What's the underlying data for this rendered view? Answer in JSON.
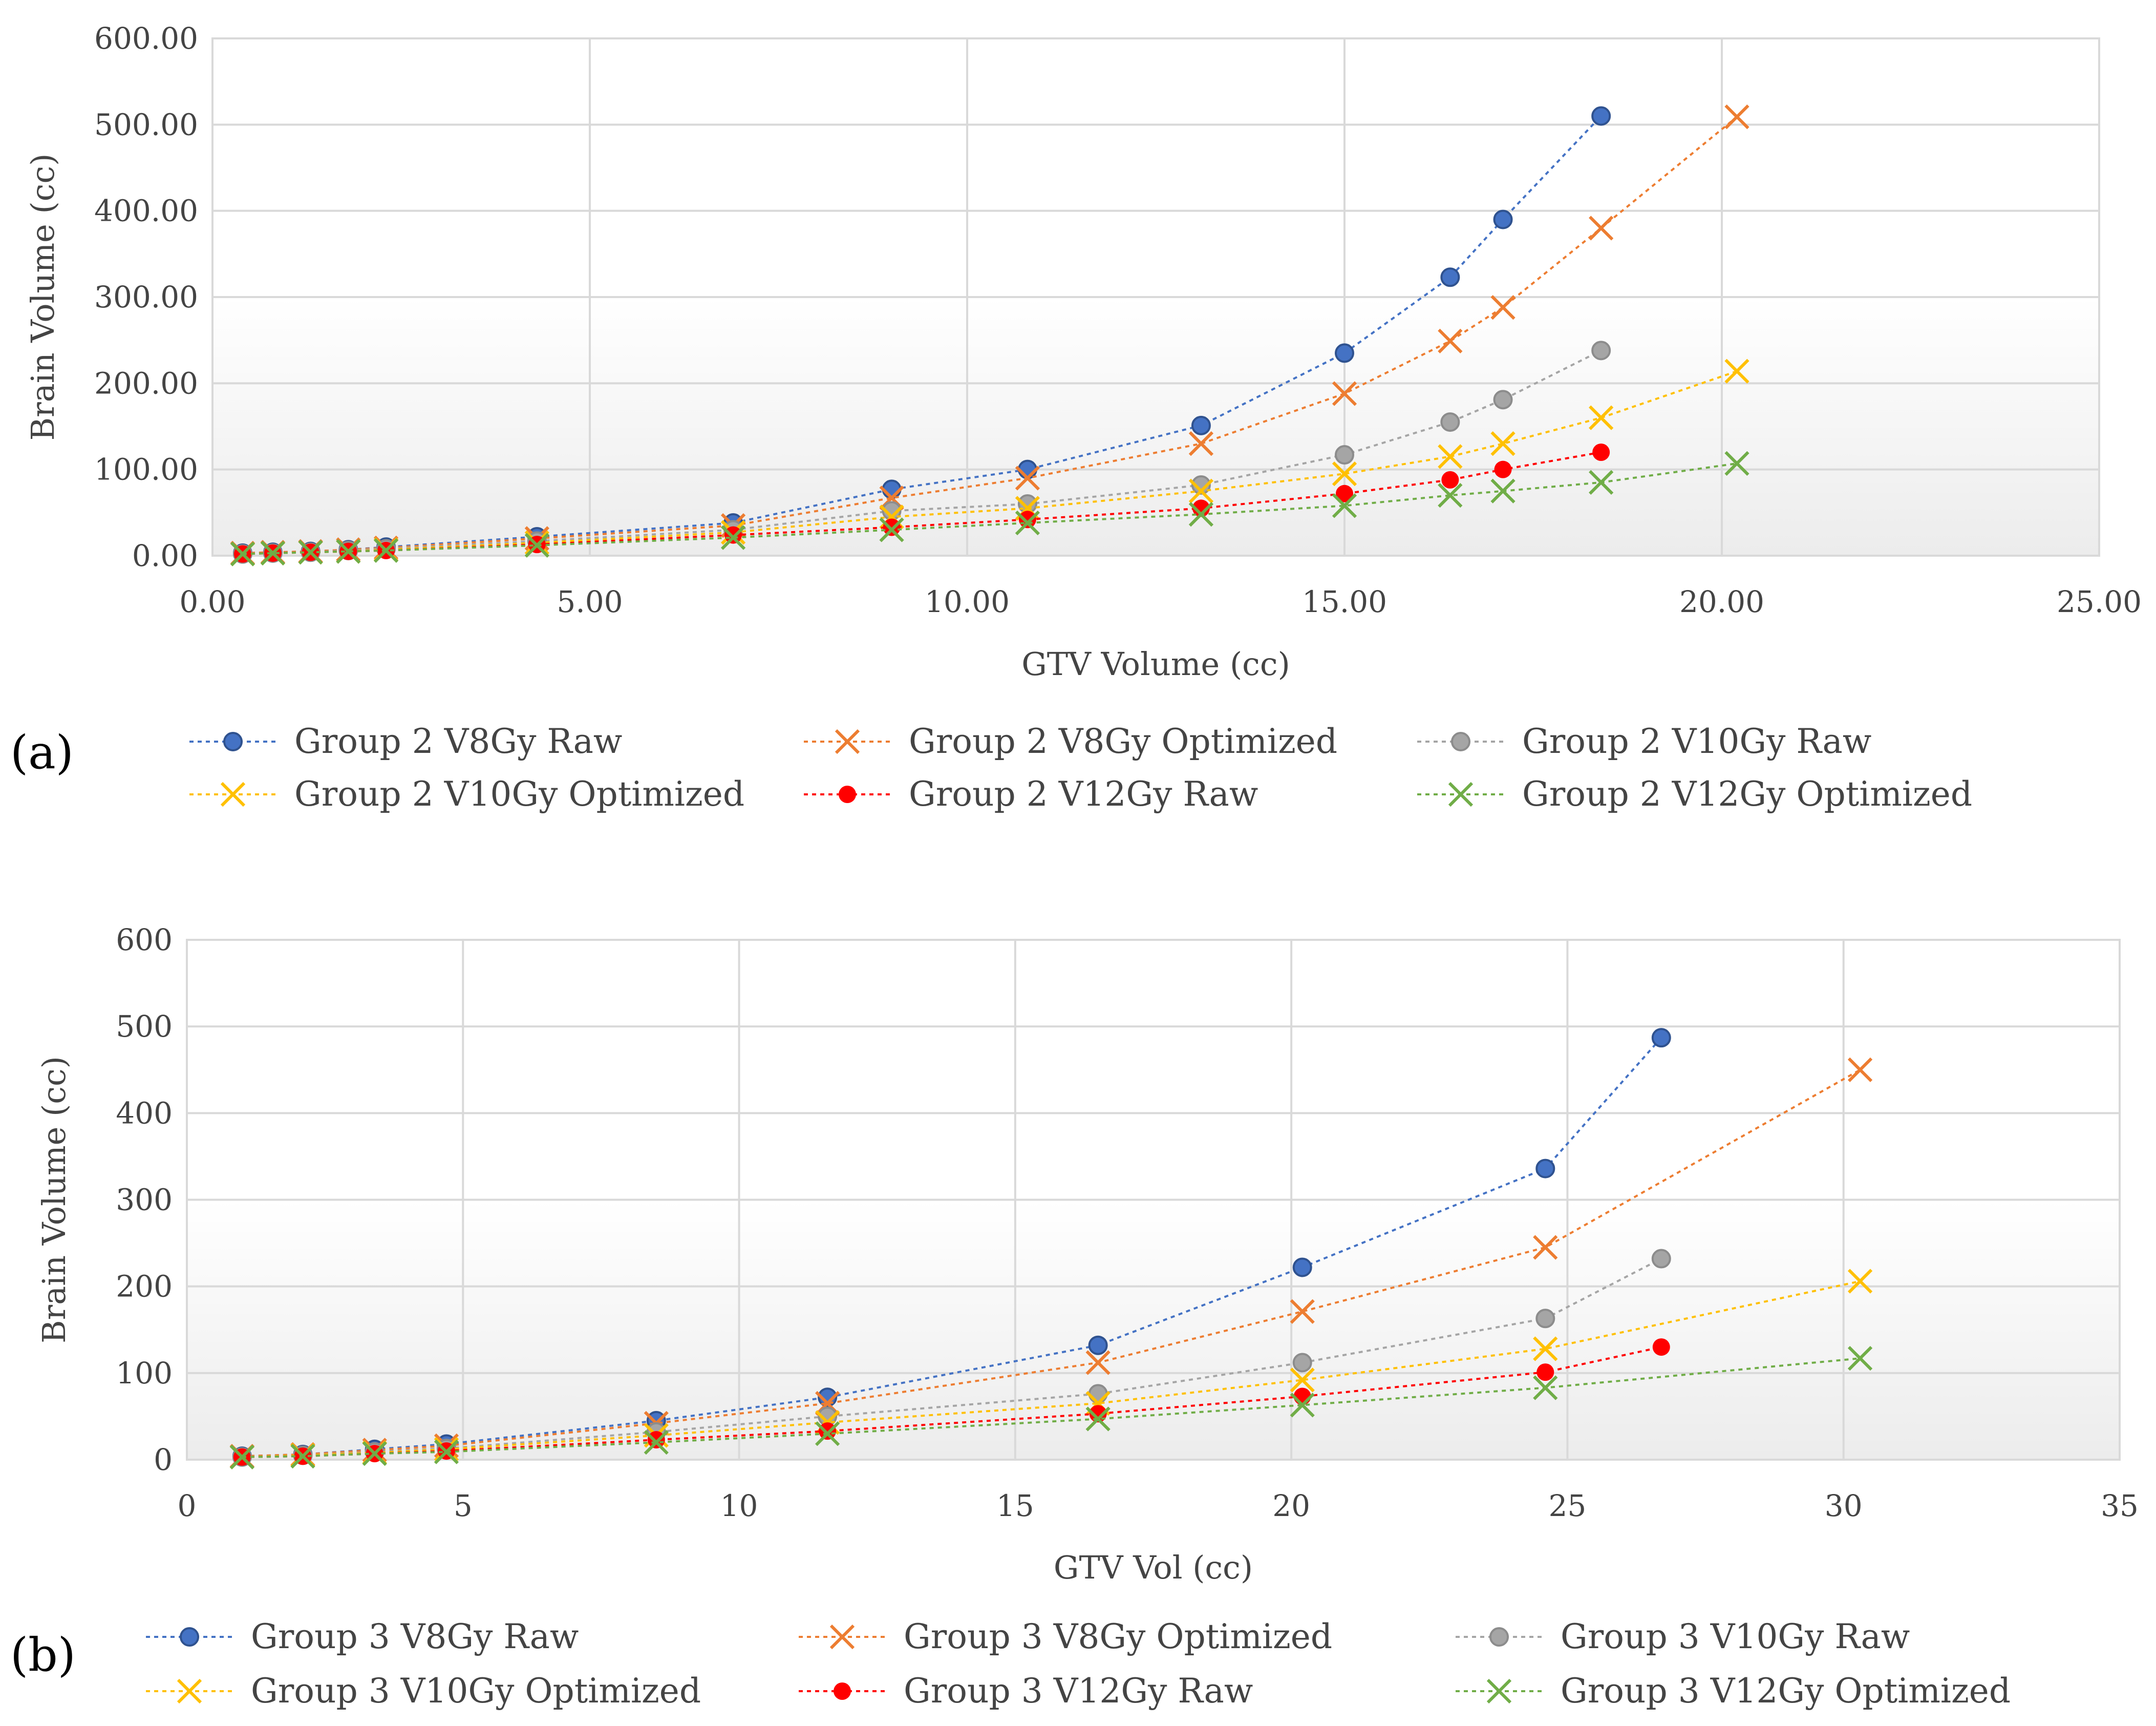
{
  "chart_data": [
    {
      "type": "scatter",
      "panel_label": "(a)",
      "title": "",
      "xlabel": "GTV Volume (cc)",
      "ylabel": "Brain Volume (cc)",
      "xlim": [
        0,
        25
      ],
      "ylim": [
        0,
        600
      ],
      "xticks": [
        "0.00",
        "5.00",
        "10.00",
        "15.00",
        "20.00",
        "25.00"
      ],
      "yticks": [
        "0.00",
        "100.00",
        "200.00",
        "300.00",
        "400.00",
        "500.00",
        "600.00"
      ],
      "grid": true,
      "legend_position": "bottom",
      "series": [
        {
          "name": "Group 2 V8Gy  Raw",
          "marker": "circle",
          "color": "#4472C4",
          "x": [
            0.4,
            0.8,
            1.3,
            1.8,
            2.3,
            4.3,
            6.9,
            9.0,
            10.8,
            13.1,
            15.0,
            16.4,
            17.1,
            18.4
          ],
          "y": [
            3,
            4,
            5,
            7,
            10,
            22,
            38,
            77,
            100,
            151,
            235,
            323,
            390,
            510
          ]
        },
        {
          "name": "Group 2 V8Gy Optimized",
          "marker": "x",
          "color": "#ED7D31",
          "x": [
            0.4,
            0.8,
            1.3,
            1.8,
            2.3,
            4.3,
            6.9,
            9.0,
            10.8,
            13.1,
            15.0,
            16.4,
            17.1,
            18.4,
            20.2
          ],
          "y": [
            3,
            4,
            5,
            7,
            9,
            20,
            35,
            67,
            90,
            130,
            188,
            249,
            288,
            380,
            509
          ]
        },
        {
          "name": "Group 2 V10Gy Raw",
          "marker": "circle",
          "color": "#A5A5A5",
          "x": [
            0.4,
            0.8,
            1.3,
            1.8,
            2.3,
            4.3,
            6.9,
            9.0,
            10.8,
            13.1,
            15.0,
            16.4,
            17.1,
            18.4
          ],
          "y": [
            2,
            3,
            4,
            6,
            8,
            17,
            30,
            52,
            60,
            82,
            117,
            155,
            181,
            238
          ]
        },
        {
          "name": "Group 2 V10Gy Optimized",
          "marker": "x",
          "color": "#FFC000",
          "x": [
            0.4,
            0.8,
            1.3,
            1.8,
            2.3,
            4.3,
            6.9,
            9.0,
            10.8,
            13.1,
            15.0,
            16.4,
            17.1,
            18.4,
            20.2
          ],
          "y": [
            2,
            3,
            4,
            5,
            7,
            15,
            27,
            45,
            55,
            75,
            95,
            115,
            130,
            160,
            214
          ]
        },
        {
          "name": "Group 2 V12Gy Raw",
          "marker": "dot",
          "color": "#FF0000",
          "x": [
            0.4,
            0.8,
            1.3,
            1.8,
            2.3,
            4.3,
            6.9,
            9.0,
            10.8,
            13.1,
            15.0,
            16.4,
            17.1,
            18.4
          ],
          "y": [
            2,
            3,
            4,
            5,
            6,
            13,
            24,
            33,
            42,
            55,
            72,
            88,
            100,
            120
          ]
        },
        {
          "name": "Group 2 V12Gy Optimized",
          "marker": "x",
          "color": "#70AD47",
          "x": [
            0.4,
            0.8,
            1.3,
            1.8,
            2.3,
            4.3,
            6.9,
            9.0,
            10.8,
            13.1,
            15.0,
            16.4,
            17.1,
            18.4,
            20.2
          ],
          "y": [
            2,
            3,
            4,
            5,
            6,
            12,
            21,
            30,
            38,
            48,
            58,
            70,
            75,
            85,
            107
          ]
        }
      ]
    },
    {
      "type": "scatter",
      "panel_label": "(b)",
      "title": "",
      "xlabel": "GTV Vol (cc)",
      "ylabel": "Brain Volume (cc)",
      "xlim": [
        0,
        35
      ],
      "ylim": [
        0,
        600
      ],
      "xticks": [
        "0",
        "5",
        "10",
        "15",
        "20",
        "25",
        "30",
        "35"
      ],
      "yticks": [
        "0",
        "100",
        "200",
        "300",
        "400",
        "500",
        "600"
      ],
      "grid": true,
      "legend_position": "bottom",
      "series": [
        {
          "name": "Group 3 V8Gy Raw",
          "marker": "circle",
          "color": "#4472C4",
          "x": [
            1.0,
            2.1,
            3.4,
            4.7,
            8.5,
            11.6,
            16.5,
            20.2,
            24.6,
            26.7
          ],
          "y": [
            4,
            6,
            12,
            18,
            45,
            72,
            132,
            222,
            336,
            487
          ]
        },
        {
          "name": "Group 3 V8Gy Optimized",
          "marker": "x",
          "color": "#ED7D31",
          "x": [
            1.0,
            2.1,
            3.4,
            4.7,
            8.5,
            11.6,
            16.5,
            20.2,
            24.6,
            30.3
          ],
          "y": [
            4,
            6,
            11,
            16,
            42,
            65,
            112,
            171,
            245,
            450
          ]
        },
        {
          "name": "Group 3 V10Gy Raw",
          "marker": "circle",
          "color": "#A5A5A5",
          "x": [
            1.0,
            2.1,
            3.4,
            4.7,
            8.5,
            11.6,
            16.5,
            20.2,
            24.6,
            26.7
          ],
          "y": [
            3,
            5,
            9,
            13,
            32,
            50,
            76,
            112,
            163,
            232
          ]
        },
        {
          "name": "Group 3 V10Gy Optimized",
          "marker": "x",
          "color": "#FFC000",
          "x": [
            1.0,
            2.1,
            3.4,
            4.7,
            8.5,
            11.6,
            16.5,
            20.2,
            24.6,
            30.3
          ],
          "y": [
            3,
            5,
            8,
            12,
            28,
            43,
            65,
            92,
            128,
            206
          ]
        },
        {
          "name": "Group 3 V12Gy Raw",
          "marker": "dot",
          "color": "#FF0000",
          "x": [
            1.0,
            2.1,
            3.4,
            4.7,
            8.5,
            11.6,
            16.5,
            20.2,
            24.6,
            26.7
          ],
          "y": [
            3,
            4,
            7,
            10,
            23,
            33,
            53,
            73,
            101,
            130
          ]
        },
        {
          "name": "Group 3 V12Gy Optimized",
          "marker": "x",
          "color": "#70AD47",
          "x": [
            1.0,
            2.1,
            3.4,
            4.7,
            8.5,
            11.6,
            16.5,
            20.2,
            24.6,
            30.3
          ],
          "y": [
            3,
            4,
            7,
            9,
            20,
            30,
            47,
            63,
            83,
            117
          ]
        }
      ]
    }
  ]
}
